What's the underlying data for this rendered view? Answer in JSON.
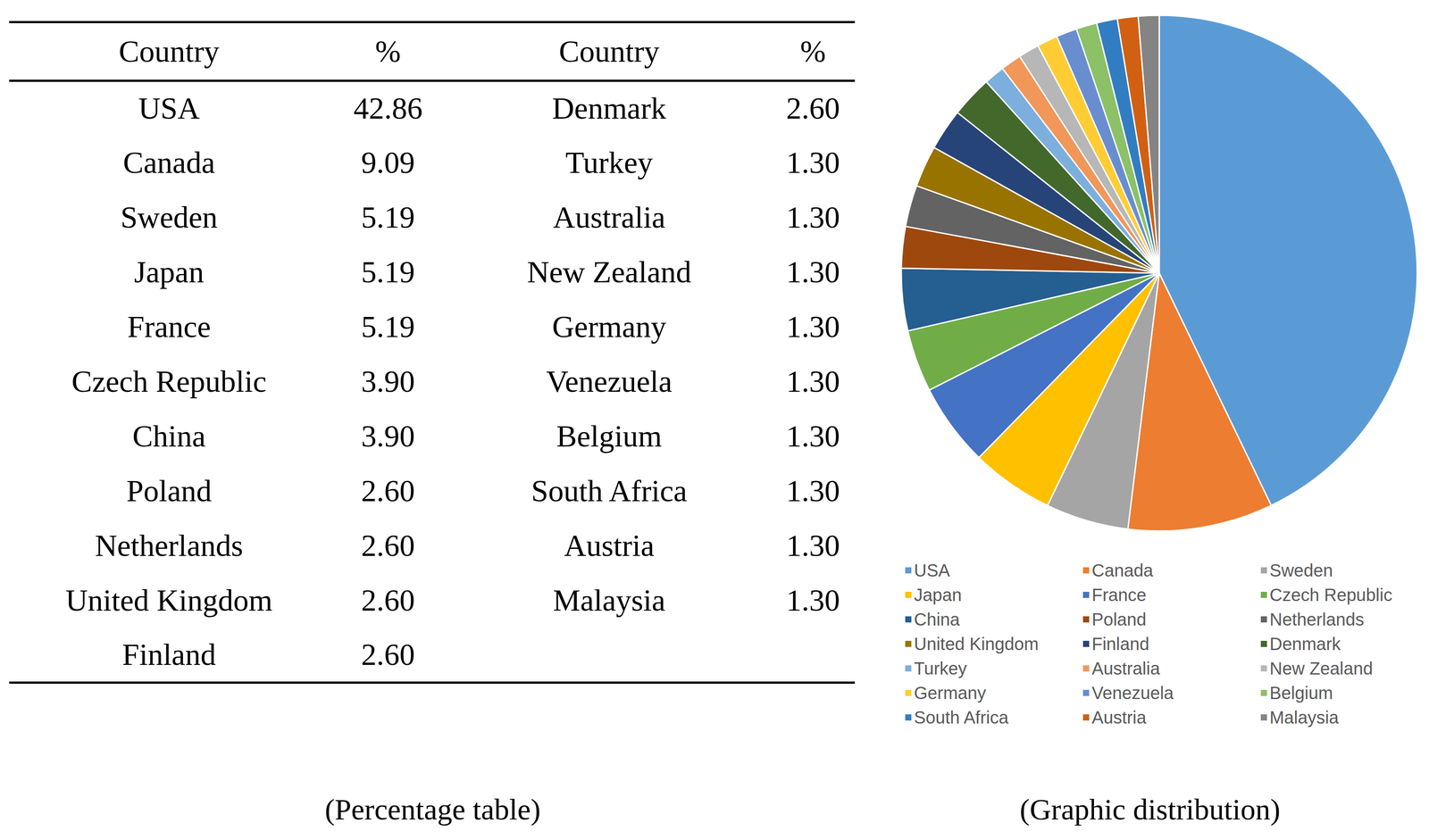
{
  "table": {
    "header": [
      "Country",
      "%",
      "Country",
      "%"
    ],
    "rows": [
      [
        "USA",
        "42.86",
        "Denmark",
        "2.60"
      ],
      [
        "Canada",
        "9.09",
        "Turkey",
        "1.30"
      ],
      [
        "Sweden",
        "5.19",
        "Australia",
        "1.30"
      ],
      [
        "Japan",
        "5.19",
        "New Zealand",
        "1.30"
      ],
      [
        "France",
        "5.19",
        "Germany",
        "1.30"
      ],
      [
        "Czech Republic",
        "3.90",
        "Venezuela",
        "1.30"
      ],
      [
        "China",
        "3.90",
        "Belgium",
        "1.30"
      ],
      [
        "Poland",
        "2.60",
        "South Africa",
        "1.30"
      ],
      [
        "Netherlands",
        "2.60",
        "Austria",
        "1.30"
      ],
      [
        "United Kingdom",
        "2.60",
        "Malaysia",
        "1.30"
      ],
      [
        "Finland",
        "2.60"
      ]
    ],
    "caption": "(Percentage table)"
  },
  "chart_data": {
    "type": "pie",
    "caption": "(Graphic distribution)",
    "categories": [
      "USA",
      "Canada",
      "Sweden",
      "Japan",
      "France",
      "Czech Republic",
      "China",
      "Poland",
      "Netherlands",
      "United Kingdom",
      "Finland",
      "Denmark",
      "Turkey",
      "Australia",
      "New Zealand",
      "Germany",
      "Venezuela",
      "Belgium",
      "South Africa",
      "Austria",
      "Malaysia"
    ],
    "values": [
      42.86,
      9.09,
      5.19,
      5.19,
      5.19,
      3.9,
      3.9,
      2.6,
      2.6,
      2.6,
      2.6,
      2.6,
      1.3,
      1.3,
      1.3,
      1.3,
      1.3,
      1.3,
      1.3,
      1.3,
      1.3
    ],
    "colors": [
      "#5B9BD5",
      "#ED7D31",
      "#A5A5A5",
      "#FFC000",
      "#4472C4",
      "#70AD47",
      "#255E91",
      "#9E480E",
      "#636363",
      "#997300",
      "#264478",
      "#43682B",
      "#7CAFDD",
      "#F1975A",
      "#B7B7B7",
      "#FFCD33",
      "#698ED0",
      "#8CC168",
      "#327DC2",
      "#D26012",
      "#848484"
    ],
    "legend": "bottom"
  }
}
